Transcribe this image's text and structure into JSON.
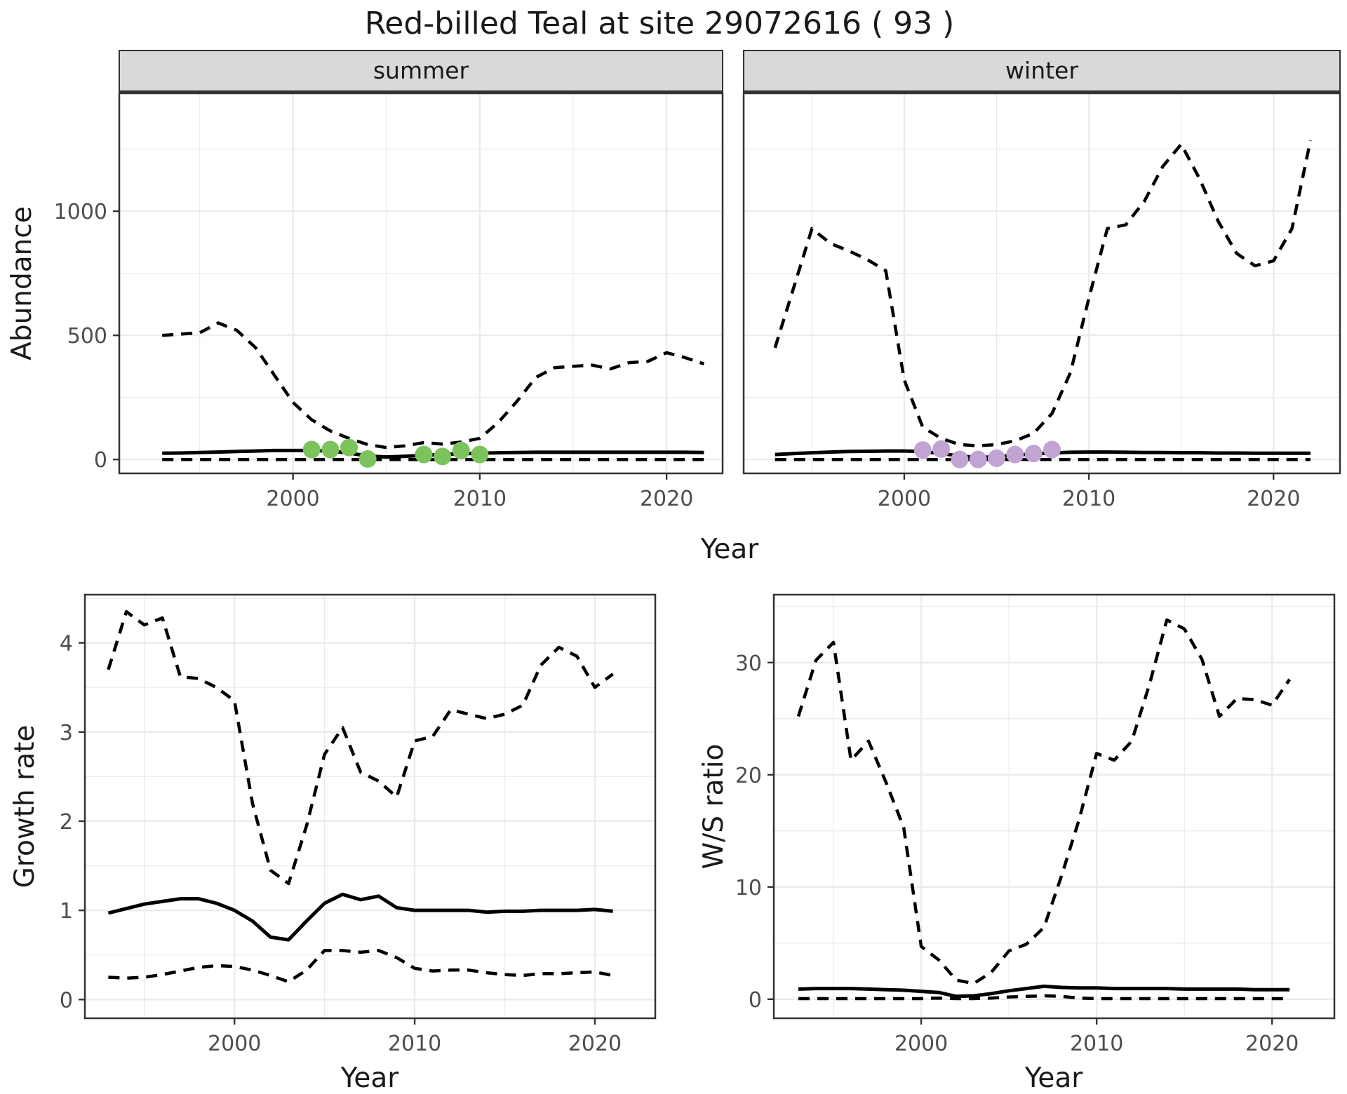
{
  "title": "Red-billed Teal at site 29072616 ( 93 )",
  "colors": {
    "fit_line": "#000000",
    "ci_line": "#000000",
    "summer_point": "#7CC35E",
    "winter_point": "#C1A3D4",
    "strip_bg": "#D9D9D9",
    "strip_border": "#333333",
    "panel_border": "#333333",
    "grid": "#EBEBEB",
    "tick_text": "#4D4D4D",
    "label_text": "#1A1A1A"
  },
  "chart_data": [
    {
      "type": "line",
      "facet": "summer",
      "xlabel": "Year",
      "ylabel": "Abundance",
      "xticks": [
        "2000",
        "2010",
        "2020"
      ],
      "xtick_years": [
        2000,
        2010,
        2020
      ],
      "yticks": [
        "0",
        "500",
        "1000"
      ],
      "ytick_values": [
        0,
        500,
        1000
      ],
      "xlim": [
        1990.7,
        2023.0
      ],
      "ylim": [
        -56,
        1475
      ],
      "years": [
        1993,
        1994,
        1995,
        1996,
        1997,
        1998,
        1999,
        2000,
        2001,
        2002,
        2003,
        2004,
        2005,
        2006,
        2007,
        2008,
        2009,
        2010,
        2011,
        2012,
        2013,
        2014,
        2015,
        2016,
        2017,
        2018,
        2019,
        2020,
        2021,
        2022
      ],
      "series": [
        {
          "name": "upper_ci",
          "style": "dashed",
          "values": [
            500,
            505,
            510,
            550,
            520,
            450,
            340,
            230,
            160,
            115,
            85,
            60,
            48,
            55,
            68,
            62,
            70,
            85,
            150,
            235,
            330,
            370,
            375,
            380,
            365,
            390,
            395,
            430,
            410,
            385
          ]
        },
        {
          "name": "fit",
          "style": "solid",
          "values": [
            25,
            26,
            28,
            30,
            32,
            34,
            36,
            36,
            36,
            34,
            26,
            14,
            10,
            13,
            17,
            20,
            23,
            25,
            27,
            28,
            29,
            29,
            29,
            29,
            29,
            29,
            29,
            29,
            29,
            28
          ]
        },
        {
          "name": "lower_ci",
          "style": "dashed",
          "values": [
            0,
            0,
            0,
            0,
            0,
            0,
            0,
            0,
            0,
            0,
            0,
            0,
            0,
            0,
            0,
            0,
            0,
            0,
            0,
            0,
            0,
            0,
            0,
            0,
            0,
            0,
            0,
            0,
            0,
            0
          ]
        }
      ],
      "points": {
        "name": "observed_counts",
        "color_key": "summer_point",
        "years": [
          2001,
          2002,
          2003,
          2004,
          2007,
          2008,
          2009,
          2010
        ],
        "values": [
          40,
          40,
          48,
          2,
          20,
          12,
          36,
          20
        ]
      }
    },
    {
      "type": "line",
      "facet": "winter",
      "xlabel": "Year",
      "ylabel": "Abundance",
      "xticks": [
        "2000",
        "2010",
        "2020"
      ],
      "xtick_years": [
        2000,
        2010,
        2020
      ],
      "yticks": [
        "0",
        "500",
        "1000"
      ],
      "ytick_values": [
        0,
        500,
        1000
      ],
      "xlim": [
        1991.3,
        2023.6
      ],
      "ylim": [
        -56,
        1475
      ],
      "years": [
        1993,
        1994,
        1995,
        1996,
        1997,
        1998,
        1999,
        2000,
        2001,
        2002,
        2003,
        2004,
        2005,
        2006,
        2007,
        2008,
        2009,
        2010,
        2011,
        2012,
        2013,
        2014,
        2015,
        2016,
        2017,
        2018,
        2019,
        2020,
        2021,
        2022
      ],
      "series": [
        {
          "name": "upper_ci",
          "style": "dashed",
          "values": [
            450,
            690,
            930,
            870,
            840,
            805,
            760,
            320,
            130,
            85,
            60,
            55,
            60,
            75,
            105,
            185,
            350,
            650,
            930,
            945,
            1040,
            1180,
            1270,
            1130,
            960,
            830,
            780,
            800,
            930,
            1285
          ]
        },
        {
          "name": "fit",
          "style": "solid",
          "values": [
            20,
            24,
            27,
            30,
            32,
            33,
            34,
            34,
            32,
            24,
            14,
            8,
            11,
            17,
            23,
            26,
            29,
            30,
            30,
            29,
            28,
            28,
            27,
            27,
            26,
            26,
            25,
            25,
            25,
            25
          ]
        },
        {
          "name": "lower_ci",
          "style": "dashed",
          "values": [
            0,
            0,
            0,
            0,
            0,
            0,
            0,
            0,
            0,
            0,
            0,
            0,
            0,
            0,
            0,
            0,
            0,
            0,
            0,
            0,
            0,
            0,
            0,
            0,
            0,
            0,
            0,
            0,
            0,
            0
          ]
        }
      ],
      "points": {
        "name": "observed_counts",
        "color_key": "winter_point",
        "years": [
          2001,
          2002,
          2003,
          2004,
          2005,
          2006,
          2007,
          2008
        ],
        "values": [
          38,
          42,
          0,
          0,
          5,
          20,
          24,
          40
        ]
      }
    },
    {
      "type": "line",
      "facet": null,
      "xlabel": "Year",
      "ylabel": "Growth rate",
      "xticks": [
        "2000",
        "2010",
        "2020"
      ],
      "xtick_years": [
        2000,
        2010,
        2020
      ],
      "yticks": [
        "0",
        "1",
        "2",
        "3",
        "4"
      ],
      "ytick_values": [
        0,
        1,
        2,
        3,
        4
      ],
      "xlim": [
        1991.7,
        2023.35
      ],
      "ylim": [
        -0.21,
        4.54
      ],
      "years": [
        1993,
        1994,
        1995,
        1996,
        1997,
        1998,
        1999,
        2000,
        2001,
        2002,
        2003,
        2004,
        2005,
        2006,
        2007,
        2008,
        2009,
        2010,
        2011,
        2012,
        2013,
        2014,
        2015,
        2016,
        2017,
        2018,
        2019,
        2020,
        2021
      ],
      "series": [
        {
          "name": "upper_ci",
          "style": "dashed",
          "values": [
            3.7,
            4.35,
            4.2,
            4.28,
            3.62,
            3.6,
            3.5,
            3.35,
            2.2,
            1.45,
            1.3,
            1.95,
            2.75,
            3.05,
            2.55,
            2.45,
            2.27,
            2.9,
            2.95,
            3.25,
            3.2,
            3.15,
            3.2,
            3.3,
            3.75,
            3.95,
            3.85,
            3.5,
            3.65
          ]
        },
        {
          "name": "fit",
          "style": "solid",
          "values": [
            0.97,
            1.02,
            1.07,
            1.1,
            1.13,
            1.13,
            1.08,
            1.0,
            0.88,
            0.7,
            0.67,
            0.88,
            1.08,
            1.18,
            1.12,
            1.16,
            1.03,
            1.0,
            1.0,
            1.0,
            1.0,
            0.98,
            0.99,
            0.99,
            1.0,
            1.0,
            1.0,
            1.01,
            0.99
          ]
        },
        {
          "name": "lower_ci",
          "style": "dashed",
          "values": [
            0.25,
            0.24,
            0.25,
            0.28,
            0.32,
            0.36,
            0.38,
            0.37,
            0.33,
            0.27,
            0.2,
            0.33,
            0.55,
            0.55,
            0.53,
            0.55,
            0.47,
            0.35,
            0.32,
            0.33,
            0.33,
            0.3,
            0.28,
            0.27,
            0.29,
            0.29,
            0.3,
            0.31,
            0.27
          ]
        }
      ],
      "points": null
    },
    {
      "type": "line",
      "facet": null,
      "xlabel": "Year",
      "ylabel": "W/S ratio",
      "xticks": [
        "2000",
        "2010",
        "2020"
      ],
      "xtick_years": [
        2000,
        2010,
        2020
      ],
      "yticks": [
        "0",
        "10",
        "20",
        "30"
      ],
      "ytick_values": [
        0,
        10,
        20,
        30
      ],
      "xlim": [
        1991.6,
        2023.55
      ],
      "ylim": [
        -1.7,
        36.05
      ],
      "years": [
        1993,
        1994,
        1995,
        1996,
        1997,
        1998,
        1999,
        2000,
        2001,
        2002,
        2003,
        2004,
        2005,
        2006,
        2007,
        2008,
        2009,
        2010,
        2011,
        2012,
        2013,
        2014,
        2015,
        2016,
        2017,
        2018,
        2019,
        2020,
        2021
      ],
      "series": [
        {
          "name": "upper_ci",
          "style": "dashed",
          "values": [
            25.2,
            30.2,
            31.8,
            21.3,
            23.0,
            19.3,
            15.3,
            4.7,
            3.5,
            1.7,
            1.4,
            2.4,
            4.3,
            4.9,
            6.4,
            11,
            16,
            21.9,
            21.3,
            23,
            28,
            33.8,
            33,
            30.3,
            25.2,
            26.8,
            26.7,
            26.2,
            28.5
          ]
        },
        {
          "name": "fit",
          "style": "solid",
          "values": [
            0.9,
            0.95,
            0.95,
            0.95,
            0.9,
            0.85,
            0.8,
            0.7,
            0.6,
            0.25,
            0.3,
            0.5,
            0.75,
            0.95,
            1.15,
            1.05,
            1.0,
            1.0,
            0.95,
            0.95,
            0.95,
            0.95,
            0.9,
            0.9,
            0.9,
            0.9,
            0.85,
            0.85,
            0.85
          ]
        },
        {
          "name": "lower_ci",
          "style": "dashed",
          "values": [
            0.05,
            0.05,
            0.05,
            0.05,
            0.05,
            0.05,
            0.05,
            0.05,
            0.1,
            0.05,
            0.05,
            0.1,
            0.2,
            0.25,
            0.3,
            0.25,
            0.1,
            0.05,
            0.05,
            0.05,
            0.05,
            0.05,
            0.05,
            0.05,
            0.05,
            0.05,
            0.05,
            0.05,
            0.05
          ]
        }
      ],
      "points": null
    }
  ]
}
